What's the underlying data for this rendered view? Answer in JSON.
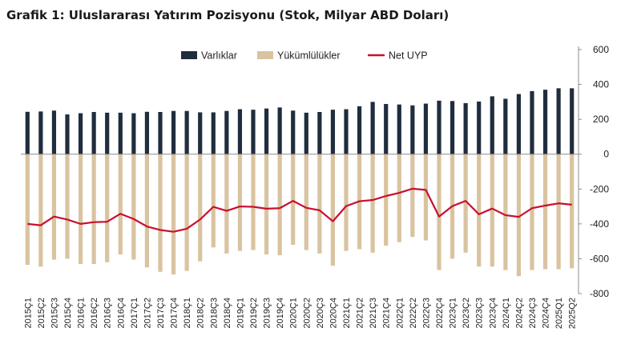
{
  "chart_data": {
    "type": "bar",
    "title": "Grafik 1: Uluslararası Yatırım Pozisyonu (Stok, Milyar ABD Doları)",
    "categories": [
      "2015Ç1",
      "2015Ç2",
      "2015Ç3",
      "2015Ç4",
      "2016Ç1",
      "2016Ç2",
      "2016Ç3",
      "2016Ç4",
      "2017Ç1",
      "2017Ç2",
      "2017Ç3",
      "2017Ç4",
      "2018Ç1",
      "2018Ç2",
      "2018Ç3",
      "2018Ç4",
      "2019Ç1",
      "2019Ç2",
      "2019Ç3",
      "2019Ç4",
      "2020Ç1",
      "2020Ç2",
      "2020Ç3",
      "2020Ç4",
      "2021Ç1",
      "2021Ç2",
      "2021Ç3",
      "2021Ç4",
      "2022Ç1",
      "2022Ç2",
      "2022Ç3",
      "2022Ç4",
      "2023Ç1",
      "2023Ç2",
      "2023Ç3",
      "2023Ç4",
      "2024Ç1",
      "2024Ç2",
      "2024Ç3",
      "2024Ç4",
      "2025Q1",
      "2025Q2"
    ],
    "series": [
      {
        "name": "Varlıklar",
        "type": "bar",
        "color": "#1f2d3d",
        "values": [
          243,
          245,
          250,
          228,
          235,
          242,
          238,
          238,
          235,
          243,
          242,
          248,
          248,
          240,
          240,
          248,
          258,
          255,
          262,
          268,
          250,
          238,
          242,
          255,
          258,
          275,
          300,
          288,
          285,
          280,
          290,
          307,
          305,
          293,
          302,
          332,
          318,
          345,
          362,
          370,
          378,
          378
        ]
      },
      {
        "name": "Yükümlülükler",
        "type": "bar",
        "color": "#d9c3a0",
        "values": [
          -635,
          -645,
          -605,
          -600,
          -630,
          -630,
          -620,
          -575,
          -605,
          -650,
          -675,
          -690,
          -670,
          -615,
          -535,
          -570,
          -555,
          -550,
          -575,
          -580,
          -520,
          -550,
          -570,
          -640,
          -555,
          -545,
          -565,
          -525,
          -505,
          -475,
          -495,
          -665,
          -600,
          -565,
          -645,
          -645,
          -665,
          -700,
          -665,
          -660,
          -660,
          -655
        ]
      },
      {
        "name": "Net UYP",
        "type": "line",
        "color": "#c8102e",
        "values": [
          -400,
          -408,
          -358,
          -375,
          -400,
          -390,
          -388,
          -342,
          -372,
          -415,
          -435,
          -445,
          -428,
          -375,
          -302,
          -325,
          -300,
          -302,
          -313,
          -310,
          -268,
          -308,
          -322,
          -385,
          -298,
          -270,
          -263,
          -240,
          -222,
          -198,
          -205,
          -358,
          -298,
          -268,
          -345,
          -312,
          -350,
          -360,
          -310,
          -295,
          -282,
          -290
        ]
      }
    ],
    "yticks": [
      600,
      400,
      200,
      0,
      -200,
      -400,
      -600,
      -800
    ],
    "ylim": [
      -800,
      600
    ],
    "legend": "top-center",
    "grid": false,
    "y_axis_position": "right"
  }
}
